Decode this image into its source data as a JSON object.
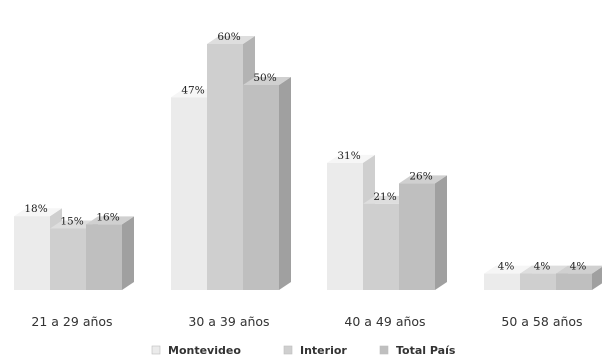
{
  "chart_data": {
    "type": "bar",
    "categories": [
      "21 a 29 años",
      "30 a 39 años",
      "40 a 49 años",
      "50 a 58 años"
    ],
    "series": [
      {
        "name": "Montevideo",
        "values": [
          18,
          47,
          31,
          4
        ],
        "labels": [
          "18%",
          "47%",
          "31%",
          "4%"
        ],
        "color": "#ebebeb",
        "side": "#cfcfcf",
        "top": "#f6f6f6"
      },
      {
        "name": "Interior",
        "values": [
          15,
          60,
          21,
          4
        ],
        "labels": [
          "15%",
          "60%",
          "21%",
          "4%"
        ],
        "color": "#cfcfcf",
        "side": "#b3b3b3",
        "top": "#dedede"
      },
      {
        "name": "Total País",
        "values": [
          16,
          50,
          26,
          4
        ],
        "labels": [
          "16%",
          "50%",
          "26%",
          "4%"
        ],
        "color": "#bfbfbf",
        "side": "#a0a0a0",
        "top": "#d0d0d0"
      }
    ],
    "ylim": [
      0,
      65
    ],
    "grid": false,
    "legend_position": "bottom"
  }
}
